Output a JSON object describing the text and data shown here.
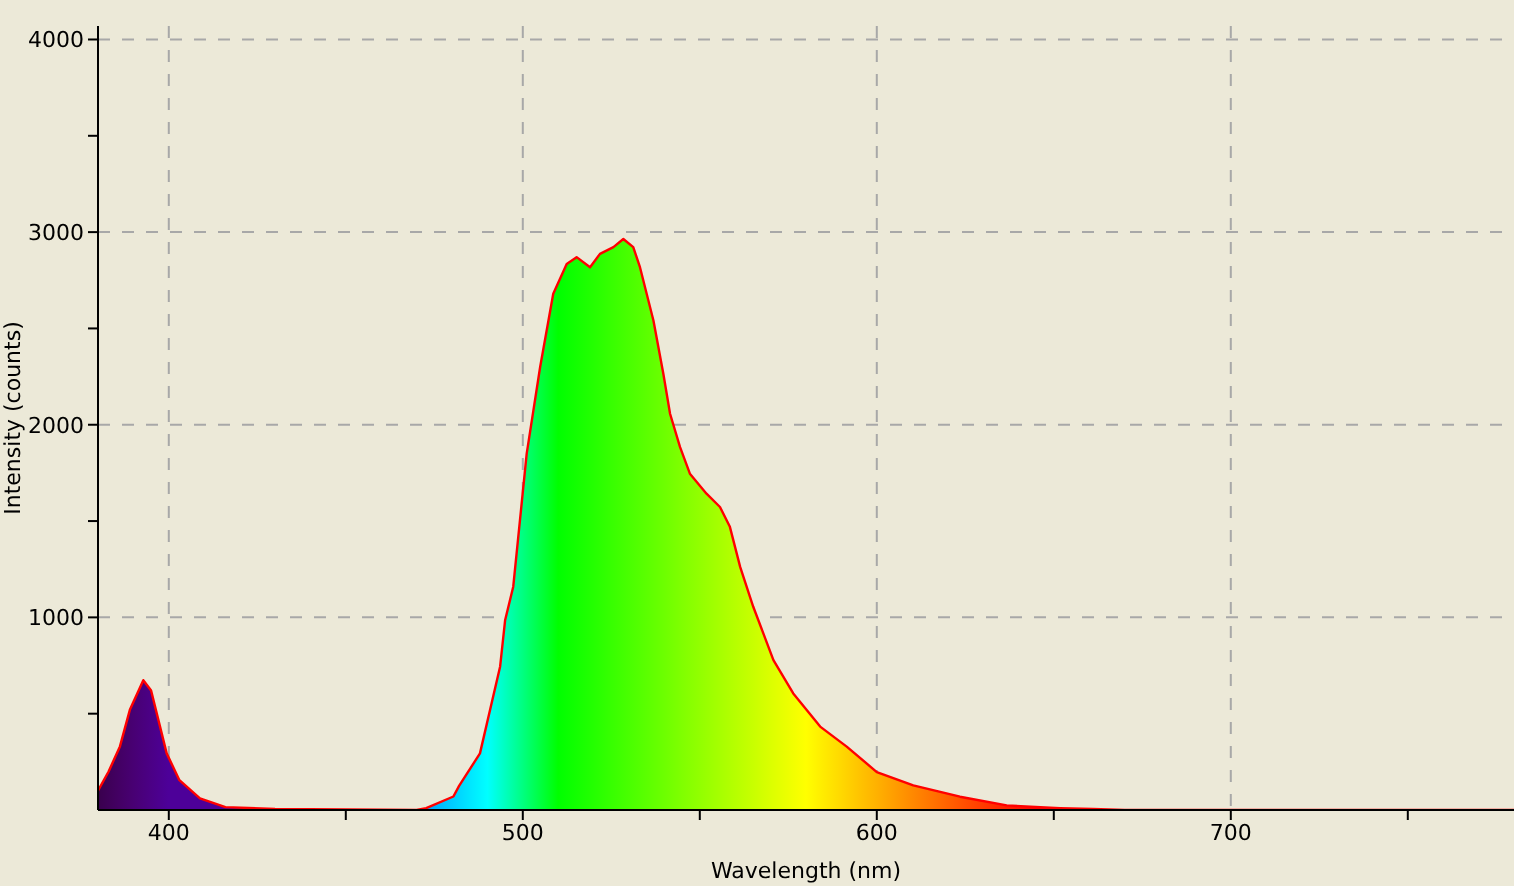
{
  "chart_data": {
    "type": "area",
    "xlabel": "Wavelength (nm)",
    "ylabel": "Intensity (counts)",
    "x": [
      380,
      383,
      386.2,
      389,
      392.8,
      395,
      399.4,
      403,
      408.8,
      416,
      430,
      470,
      472.7,
      480.4,
      482,
      487.9,
      493.6,
      495,
      497.3,
      501.1,
      504.9,
      508.6,
      512.4,
      515.2,
      519,
      521.8,
      525.6,
      528.4,
      531.2,
      533.1,
      536.9,
      539.7,
      541.6,
      544.4,
      547.2,
      551.9,
      555.7,
      558.5,
      561.4,
      565.1,
      570.8,
      576.4,
      584,
      591.5,
      600,
      610.3,
      623.5,
      636.7,
      651.8,
      661,
      670,
      780
    ],
    "series": [
      {
        "color": "#ff0000",
        "values": [
          100,
          200,
          330,
          520,
          674,
          620,
          294,
          155,
          60,
          15,
          5,
          0,
          10,
          70,
          125,
          294,
          745,
          985,
          1159,
          1850,
          2300,
          2680,
          2835,
          2870,
          2818,
          2887,
          2922,
          2964,
          2922,
          2818,
          2541,
          2265,
          2057,
          1885,
          1746,
          1642,
          1573,
          1470,
          1262,
          1055,
          778,
          605,
          433,
          329,
          197,
          128,
          69,
          24,
          10,
          5,
          0,
          0
        ]
      }
    ],
    "xlim": [
      380,
      780
    ],
    "xticks": [
      400,
      {
        "value": 450,
        "label": null
      },
      500,
      {
        "value": 550,
        "label": null
      },
      600,
      {
        "value": 650,
        "label": null
      },
      700,
      {
        "value": 750,
        "label": null
      }
    ],
    "ylim": [
      0,
      4070
    ],
    "yticks": [
      {
        "value": 500,
        "label": null
      },
      1000,
      {
        "value": 1500,
        "label": null
      },
      2000,
      {
        "value": 2500,
        "label": null
      },
      3000,
      {
        "value": 3500,
        "label": null
      },
      4000
    ],
    "grid": true,
    "line_style": "solid"
  }
}
